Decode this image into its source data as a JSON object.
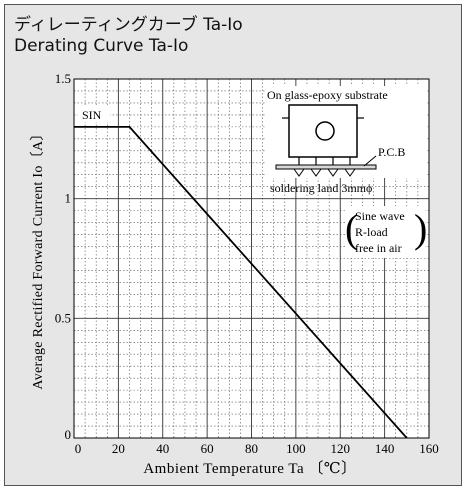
{
  "header": {
    "title_jp": "ディレーティングカーブ Ta-Io",
    "title_en": "Derating Curve Ta-Io"
  },
  "chart_data": {
    "type": "line",
    "xlabel": "Ambient Temperature Ta 〔℃〕",
    "ylabel": "Average Rectified Forward Current Io〔A〕",
    "xlim": [
      0,
      160
    ],
    "ylim": [
      0,
      1.5
    ],
    "x_ticks": [
      "0",
      "20",
      "40",
      "60",
      "80",
      "100",
      "120",
      "140",
      "160"
    ],
    "y_ticks": [
      "0",
      "0.5",
      "1",
      "1.5"
    ],
    "grid": true,
    "series": [
      {
        "name": "SIN",
        "x": [
          0,
          25,
          150
        ],
        "y": [
          1.3,
          1.3,
          0
        ]
      }
    ],
    "annotations": {
      "inset_title": "On glass-epoxy substrate",
      "pcb_label": "P.C.B",
      "soldering_label": "soldering land 3mmϕ",
      "conditions": [
        "Sine wave",
        "R-load",
        "free in air"
      ]
    }
  }
}
